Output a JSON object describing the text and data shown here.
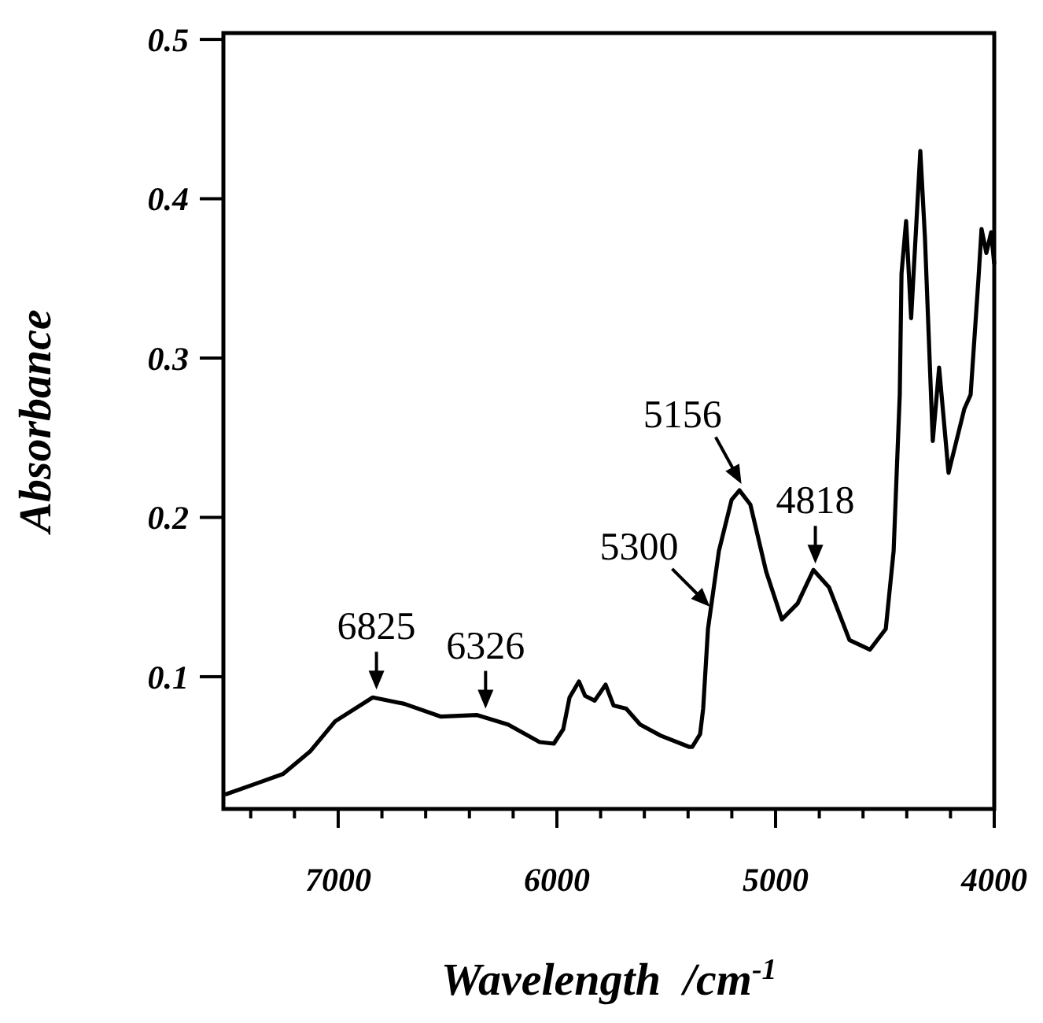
{
  "chart_data": {
    "type": "line",
    "xlabel": "Wavelength  /cm$^{-1}$",
    "ylabel": "Absorbance",
    "xlim": [
      7525,
      4000
    ],
    "ylim": [
      0.017,
      0.504
    ],
    "xticks": [
      {
        "value": 7400,
        "label": null
      },
      {
        "value": 7200,
        "label": null
      },
      7000,
      {
        "value": 6800,
        "label": null
      },
      {
        "value": 6600,
        "label": null
      },
      {
        "value": 6400,
        "label": null
      },
      {
        "value": 6200,
        "label": null
      },
      6000,
      {
        "value": 5800,
        "label": null
      },
      {
        "value": 5600,
        "label": null
      },
      {
        "value": 5400,
        "label": null
      },
      {
        "value": 5200,
        "label": null
      },
      5000,
      {
        "value": 4800,
        "label": null
      },
      {
        "value": 4600,
        "label": null
      },
      {
        "value": 4400,
        "label": null
      },
      {
        "value": 4200,
        "label": null
      },
      4000
    ],
    "yticks": [
      0.1,
      0.2,
      0.3,
      0.4,
      0.5
    ],
    "marker": "none",
    "line_style": "solid",
    "annotations": [
      {
        "text": "6825",
        "x": 6825,
        "y": 0.088
      },
      {
        "text": "6326",
        "x": 6326,
        "y": 0.076
      },
      {
        "text": "5300",
        "x": 5300,
        "y": 0.14
      },
      {
        "text": "5156",
        "x": 5156,
        "y": 0.217
      },
      {
        "text": "4818",
        "x": 4818,
        "y": 0.167
      }
    ],
    "series": [
      {
        "color": "#000000",
        "x": [
          7518,
          7374,
          7252,
          7129,
          7014,
          6842,
          6698,
          6532,
          6367,
          6223,
          6079,
          6014,
          5971,
          5942,
          5899,
          5871,
          5827,
          5777,
          5741,
          5683,
          5619,
          5525,
          5396,
          5381,
          5345,
          5331,
          5309,
          5259,
          5201,
          5165,
          5115,
          5043,
          4971,
          4899,
          4827,
          4755,
          4662,
          4568,
          4496,
          4460,
          4432,
          4424,
          4403,
          4380,
          4338,
          4317,
          4281,
          4252,
          4209,
          4137,
          4108,
          4072,
          4058,
          4036,
          4014,
          4000
        ],
        "values": [
          0.026,
          0.033,
          0.039,
          0.053,
          0.072,
          0.087,
          0.083,
          0.075,
          0.076,
          0.07,
          0.059,
          0.058,
          0.067,
          0.087,
          0.097,
          0.088,
          0.085,
          0.095,
          0.082,
          0.08,
          0.07,
          0.063,
          0.056,
          0.056,
          0.064,
          0.08,
          0.13,
          0.179,
          0.211,
          0.217,
          0.208,
          0.166,
          0.136,
          0.146,
          0.167,
          0.156,
          0.123,
          0.117,
          0.13,
          0.179,
          0.277,
          0.353,
          0.386,
          0.325,
          0.43,
          0.376,
          0.248,
          0.294,
          0.228,
          0.268,
          0.277,
          0.35,
          0.381,
          0.366,
          0.379,
          0.359
        ]
      }
    ]
  }
}
